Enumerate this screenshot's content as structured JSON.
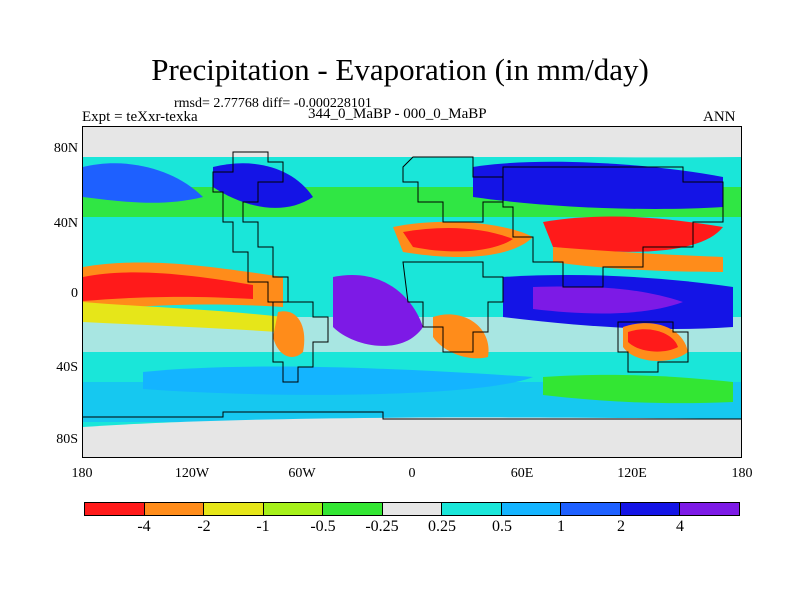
{
  "title": "Precipitation - Evaporation (in mm/day)",
  "stats": "rmsd= 2.77768 diff= -0.000228101",
  "expt": "Expt = teXxr-texka",
  "period": "344_0_MaBP - 000_0_MaBP",
  "season": "ANN",
  "y_ticks": [
    "80N",
    "40N",
    "0",
    "40S",
    "80S"
  ],
  "x_ticks": [
    "180",
    "120W",
    "60W",
    "0",
    "60E",
    "120E",
    "180"
  ],
  "colorbar": {
    "colors": [
      "#ff1a1a",
      "#ff8c1a",
      "#e6e619",
      "#a6f01a",
      "#33e633",
      "#e6e6e6",
      "#1ae6d9",
      "#14b4ff",
      "#1e60ff",
      "#1414e6",
      "#7d1ae6"
    ],
    "labels": [
      "-4",
      "-2",
      "-1",
      "-0.5",
      "-0.25",
      "0.25",
      "0.5",
      "1",
      "2",
      "4"
    ]
  },
  "palette": {
    "land_fill": "#e6e6e6",
    "coast": "#000000"
  }
}
